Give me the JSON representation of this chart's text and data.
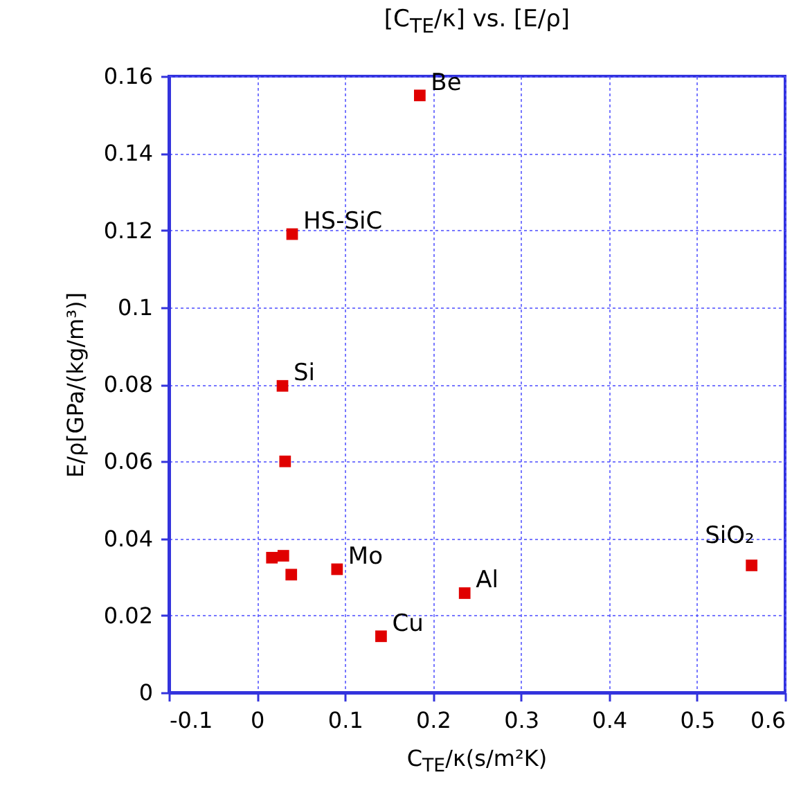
{
  "chart_data": {
    "type": "scatter",
    "title": "[C$_{TE}$/κ] vs. [E/ρ]",
    "xlabel": "C$_{TE}$/κ(s/m²K)",
    "ylabel": "E/ρ[GPa/(kg/m³)]",
    "x": [
      0.185,
      0.04,
      0.029,
      0.032,
      0.03,
      0.017,
      0.039,
      0.091,
      0.141,
      0.236,
      0.562
    ],
    "series": [
      {
        "color": "#e00000",
        "values": [
          0.155,
          0.119,
          0.0796,
          0.06,
          0.0355,
          0.035,
          0.0306,
          0.032,
          0.0146,
          0.0258,
          0.033
        ]
      }
    ],
    "xlim": [
      -0.1,
      0.6
    ],
    "xticks": [
      -0.1,
      0,
      0.1,
      0.2,
      0.3,
      0.4,
      0.5,
      0.6
    ],
    "ylim": [
      0,
      0.16
    ],
    "yticks": [
      0,
      0.02,
      0.04,
      0.06,
      0.08,
      0.1,
      0.12,
      0.14,
      0.16
    ],
    "grid": true,
    "marker": "square",
    "annotations": [
      {
        "text": "Be",
        "x": 0.185,
        "y": 0.155
      },
      {
        "text": "HS-SiC",
        "x": 0.04,
        "y": 0.119
      },
      {
        "text": "Si",
        "x": 0.029,
        "y": 0.0796
      },
      {
        "text": "Mo",
        "x": 0.091,
        "y": 0.032
      },
      {
        "text": "Cu",
        "x": 0.141,
        "y": 0.0146
      },
      {
        "text": "Al",
        "x": 0.236,
        "y": 0.0258
      },
      {
        "text": "SiO₂",
        "x": 0.562,
        "y": 0.033
      }
    ]
  }
}
